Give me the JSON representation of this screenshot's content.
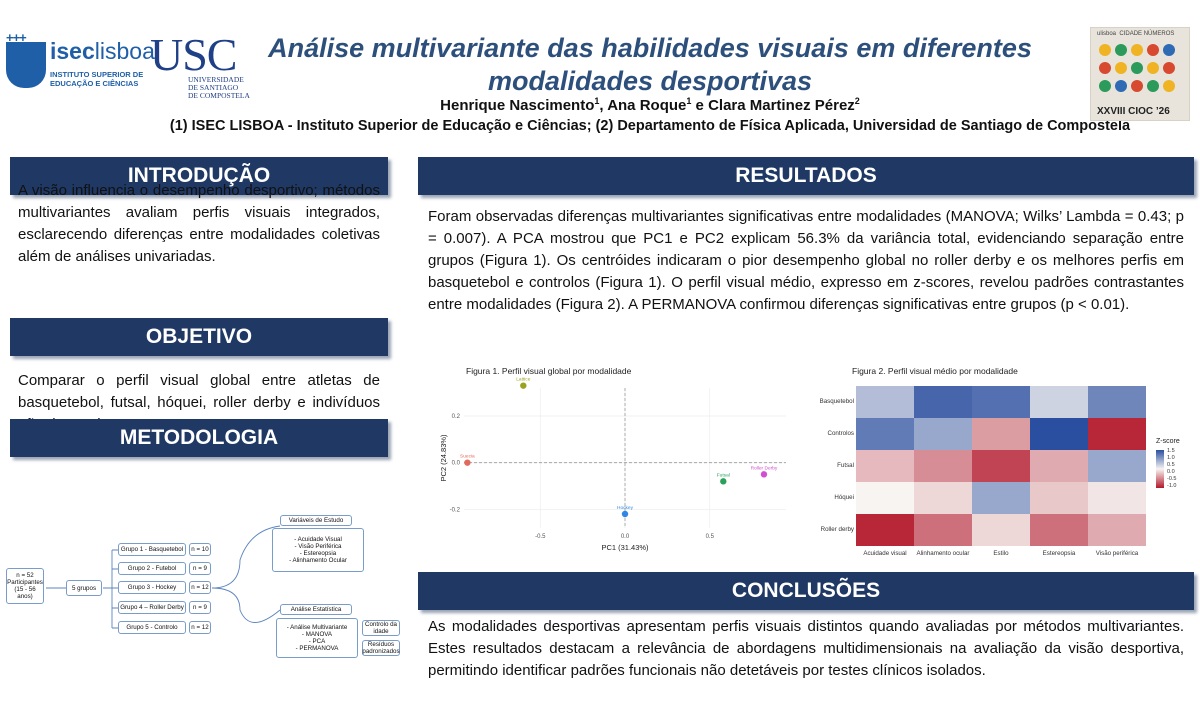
{
  "header": {
    "isec_logo": {
      "name": "iseclisboa",
      "name_bold": "isec",
      "name_light": "lisboa",
      "subtitle_line1": "INSTITUTO SUPERIOR DE",
      "subtitle_line2": "EDUCAÇÃO E CIÊNCIAS"
    },
    "usc_logo": {
      "name": "USC",
      "subtitle_line1": "UNIVERSIDADE",
      "subtitle_line2": "DE SANTIAGO",
      "subtitle_line3": "DE COMPOSTELA"
    },
    "title_line1": "Análise multivariante das habilidades visuais em diferentes",
    "title_line2": "modalidades desportivas",
    "authors": {
      "a1": "Henrique Nascimento",
      "a1_sup": "1",
      "sep1": ", ",
      "a2": "Ana Roque",
      "a2_sup": "1",
      "sep2": " e ",
      "a3": "Clara Martinez Pérez",
      "a3_sup": "2"
    },
    "affiliations": "(1) ISEC LISBOA - Instituto Superior de Educação e Ciências; (2) Departamento de Física Aplicada, Universidad de Santiago de Compostela",
    "conference_logo": {
      "top_left": "ulisboa",
      "top_right": "CIDADE NÚMEROS",
      "label": "XXVIII CIOC ’26"
    }
  },
  "sections": {
    "introducao": {
      "title": "INTRODUÇÃO",
      "text": "A visão influencia o desempenho desportivo; métodos multivariantes avaliam perfis visuais integrados, esclarecendo diferenças entre modalidades coletivas além de análises univariadas."
    },
    "objetivo": {
      "title": "OBJETIVO",
      "text": "Comparar o perfil visual global entre atletas de basquetebol, futsal, hóquei, roller derby e indivíduos não desportistas"
    },
    "metodologia": {
      "title": "METODOLOGIA",
      "participants": "n = 52\nParticipantes\n(15 - 56 anos)",
      "groups_label": "5 grupos",
      "groups": [
        {
          "label": "Grupo 1 - Basquetebol",
          "n": "n = 10"
        },
        {
          "label": "Grupo 2 - Futebol",
          "n": "n = 9"
        },
        {
          "label": "Grupo 3 - Hockey",
          "n": "n = 12"
        },
        {
          "label": "Grupo 4 – Roller Derby",
          "n": "n = 9"
        },
        {
          "label": "Grupo 5 - Controlo",
          "n": "n = 12"
        }
      ],
      "variables_title": "Variáveis de Estudo",
      "variables": [
        "Acuidade Visual",
        "Visão Periférica",
        "Estereopsia",
        "Alinhamento Ocular"
      ],
      "analysis_title": "Análise Estatística",
      "analysis": [
        "Análise Multivariante",
        "MANOVA",
        "PCA",
        "PERMANOVA"
      ],
      "control_age": "Controlo da idade",
      "residuals": "Resíduos padronizados"
    },
    "resultados": {
      "title": "RESULTADOS",
      "text": "Foram observadas diferenças multivariantes significativas entre modalidades (MANOVA; Wilks’ Lambda = 0.43; p = 0.007). A PCA mostrou que PC1 e PC2 explicam 56.3% da variância total, evidenciando separação entre grupos (Figura 1). Os centróides indicaram o pior desempenho global no roller derby e os melhores perfis em basquetebol e controlos (Figura 1). O perfil visual médio, expresso em z-scores, revelou padrões contrastantes entre modalidades (Figura 2). A PERMANOVA confirmou diferenças significativas entre grupos (p < 0.01)."
    },
    "conclusoes": {
      "title": "CONCLUSÕES",
      "text": "As modalidades desportivas apresentam perfis visuais distintos quando avaliadas por métodos multivariantes. Estes resultados destacam a relevância de abordagens multidimensionais na avaliação da visão desportiva, permitindo identificar padrões funcionais não detetáveis por testes clínicos isolados."
    }
  },
  "chart_data": [
    {
      "type": "scatter",
      "title": "Figura 1. Perfil visual global por modalidade",
      "xlabel": "PC1 (31.43%)",
      "ylabel": "PC2 (24.83%)",
      "xlim": [
        -0.95,
        0.95
      ],
      "ylim": [
        -0.28,
        0.32
      ],
      "xticks": [
        -0.5,
        0.0,
        0.5
      ],
      "yticks": [
        -0.2,
        0.0,
        0.2
      ],
      "points": [
        {
          "name": "Lattice",
          "x": -0.6,
          "y": 0.33,
          "color": "#9aa31f"
        },
        {
          "name": "Suecia",
          "x": -0.93,
          "y": 0.0,
          "color": "#e06b5c"
        },
        {
          "name": "Roller Derby",
          "x": 0.82,
          "y": -0.05,
          "color": "#d34fd1"
        },
        {
          "name": "Futsal",
          "x": 0.58,
          "y": -0.08,
          "color": "#2aa05a"
        },
        {
          "name": "Hockey",
          "x": 0.0,
          "y": -0.22,
          "color": "#2f86e6"
        }
      ]
    },
    {
      "type": "heatmap",
      "title": "Figura 2. Perfil visual médio por modalidade",
      "rows": [
        "Basquetebol",
        "Controlos",
        "Futsal",
        "Hóquei",
        "Roller derby"
      ],
      "columns": [
        "Acuidade visual",
        "Alinhamento ocular",
        "Estilo",
        "Estereopsia",
        "Visão periférica"
      ],
      "values": [
        [
          0.5,
          1.3,
          1.2,
          0.3,
          1.0
        ],
        [
          1.1,
          0.7,
          -0.6,
          1.5,
          -1.4
        ],
        [
          -0.4,
          -0.7,
          -1.2,
          -0.5,
          0.7
        ],
        [
          0.0,
          -0.2,
          0.7,
          -0.3,
          -0.1
        ],
        [
          -1.4,
          -0.9,
          -0.2,
          -0.9,
          -0.5
        ]
      ],
      "legend_title": "Z-score",
      "legend_ticks": [
        "1.5",
        "1.0",
        "0.5",
        "0.0",
        "-0.5",
        "-1.0"
      ],
      "colors": {
        "high": "#2b4fa0",
        "mid": "#f7f4f2",
        "low": "#b2182b"
      }
    }
  ]
}
